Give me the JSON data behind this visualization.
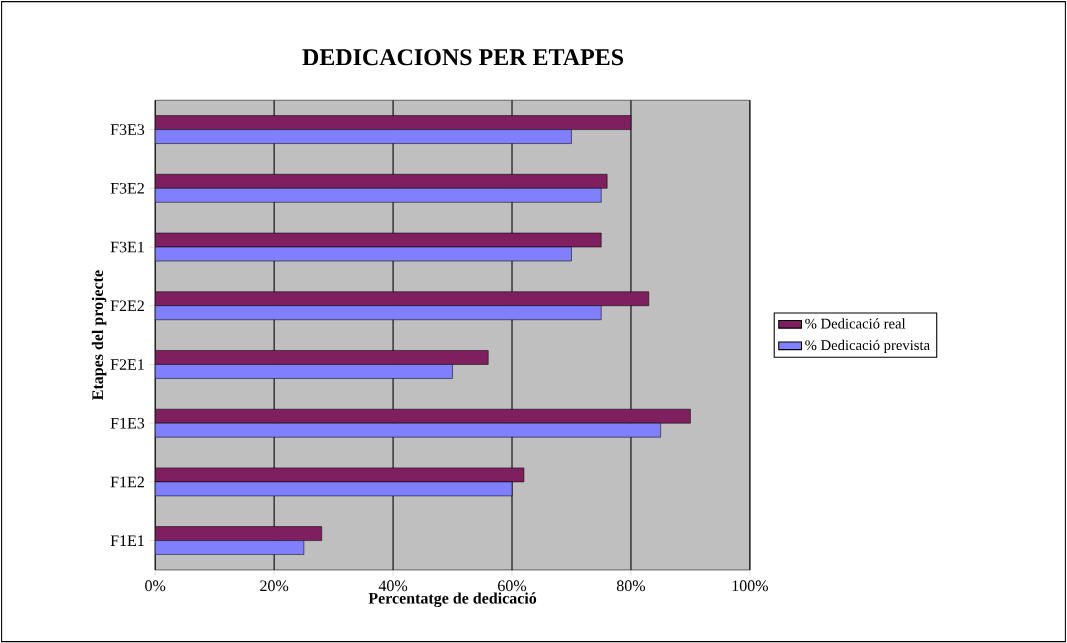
{
  "chart_data": {
    "type": "bar",
    "orientation": "horizontal",
    "title": "DEDICACIONS PER ETAPES",
    "xlabel": "Percentatge de dedicació",
    "ylabel": "Etapes del projecte",
    "categories": [
      "F3E3",
      "F3E2",
      "F3E1",
      "F2E2",
      "F2E1",
      "F1E3",
      "F1E2",
      "F1E1"
    ],
    "series": [
      {
        "name": "% Dedicació real",
        "color": "#7f1f5f",
        "values": [
          80,
          76,
          75,
          83,
          56,
          90,
          62,
          28
        ]
      },
      {
        "name": "% Dedicació prevista",
        "color": "#8080ff",
        "values": [
          70,
          75,
          70,
          75,
          50,
          85,
          60,
          25
        ]
      }
    ],
    "xlim": [
      0,
      100
    ],
    "xticks": [
      {
        "value": 0,
        "label": "0%"
      },
      {
        "value": 20,
        "label": "20%"
      },
      {
        "value": 40,
        "label": "40%"
      },
      {
        "value": 60,
        "label": "60%"
      },
      {
        "value": 80,
        "label": "80%"
      },
      {
        "value": 100,
        "label": "100%"
      }
    ],
    "grid": "x",
    "legend": "right"
  }
}
